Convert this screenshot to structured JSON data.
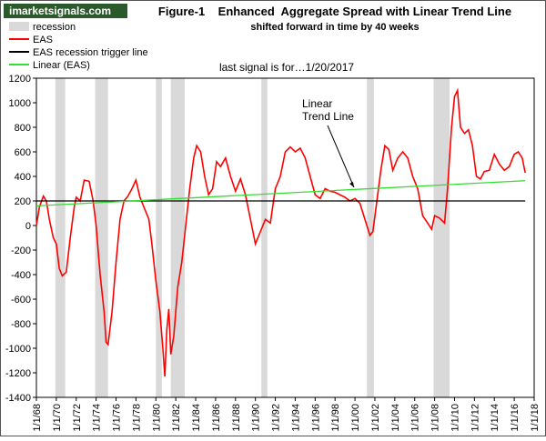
{
  "chart_data": {
    "type": "line",
    "logo": "imarketsignals.com",
    "title": "Figure-1    Enhanced  Aggregate Spread with Linear Trend Line",
    "subtitle": "shifted forward in time by 40 weeks",
    "annotations": [
      "last signal is for…1/20/2017",
      "Linear",
      "Trend Line"
    ],
    "xlim": [
      1968,
      2018
    ],
    "xticks": [
      {
        "value": 1968,
        "label": "1/1/68"
      },
      {
        "value": 1970,
        "label": "1/1/70"
      },
      {
        "value": 1972,
        "label": "1/1/72"
      },
      {
        "value": 1974,
        "label": "1/1/74"
      },
      {
        "value": 1976,
        "label": "1/1/76"
      },
      {
        "value": 1978,
        "label": "1/1/78"
      },
      {
        "value": 1980,
        "label": "1/1/80"
      },
      {
        "value": 1982,
        "label": "1/1/82"
      },
      {
        "value": 1984,
        "label": "1/1/84"
      },
      {
        "value": 1986,
        "label": "1/1/86"
      },
      {
        "value": 1988,
        "label": "1/1/88"
      },
      {
        "value": 1990,
        "label": "1/1/90"
      },
      {
        "value": 1992,
        "label": "1/1/92"
      },
      {
        "value": 1994,
        "label": "1/1/94"
      },
      {
        "value": 1996,
        "label": "1/1/96"
      },
      {
        "value": 1998,
        "label": "1/1/98"
      },
      {
        "value": 2000,
        "label": "1/1/00"
      },
      {
        "value": 2002,
        "label": "1/1/02"
      },
      {
        "value": 2004,
        "label": "1/1/04"
      },
      {
        "value": 2006,
        "label": "1/1/06"
      },
      {
        "value": 2008,
        "label": "1/1/08"
      },
      {
        "value": 2010,
        "label": "1/1/10"
      },
      {
        "value": 2012,
        "label": "1/1/12"
      },
      {
        "value": 2014,
        "label": "1/1/14"
      },
      {
        "value": 2016,
        "label": "1/1/16"
      },
      {
        "value": 2018,
        "label": "1/1/18"
      }
    ],
    "ylim": [
      -1400,
      1200
    ],
    "yticks": [
      1200,
      1000,
      800,
      600,
      400,
      200,
      0,
      -200,
      -400,
      -600,
      -800,
      -1000,
      -1200,
      -1400
    ],
    "series": [
      {
        "name": "recession",
        "kind": "band",
        "color": "#d9d9d9",
        "bands": [
          [
            1969.9,
            1970.9
          ],
          [
            1973.9,
            1975.2
          ],
          [
            1980.0,
            1980.6
          ],
          [
            1981.5,
            1982.9
          ],
          [
            1990.6,
            1991.2
          ],
          [
            2001.2,
            2001.9
          ],
          [
            2007.9,
            2009.5
          ]
        ]
      },
      {
        "name": "EAS",
        "kind": "line",
        "color": "#ff0000",
        "x": [
          1968.0,
          1968.3,
          1968.7,
          1969.0,
          1969.3,
          1969.7,
          1970.0,
          1970.3,
          1970.6,
          1971.0,
          1971.4,
          1971.8,
          1972.0,
          1972.4,
          1972.8,
          1973.3,
          1973.7,
          1974.0,
          1974.4,
          1974.8,
          1975.0,
          1975.2,
          1975.6,
          1976.0,
          1976.4,
          1976.8,
          1977.2,
          1977.6,
          1978.0,
          1978.4,
          1978.8,
          1979.3,
          1979.6,
          1980.0,
          1980.4,
          1980.7,
          1980.9,
          1981.1,
          1981.3,
          1981.5,
          1981.8,
          1982.2,
          1982.6,
          1983.0,
          1983.4,
          1983.8,
          1984.1,
          1984.5,
          1984.9,
          1985.3,
          1985.7,
          1986.1,
          1986.5,
          1987.0,
          1987.5,
          1988.0,
          1988.5,
          1989.0,
          1989.5,
          1990.0,
          1990.5,
          1991.0,
          1991.5,
          1992.0,
          1992.5,
          1993.0,
          1993.5,
          1994.0,
          1994.5,
          1995.0,
          1995.5,
          1996.0,
          1996.5,
          1997.0,
          1997.5,
          1998.0,
          1998.5,
          1999.0,
          1999.5,
          2000.0,
          2000.5,
          2001.0,
          2001.5,
          2001.8,
          2002.2,
          2002.6,
          2003.0,
          2003.4,
          2003.8,
          2004.3,
          2004.8,
          2005.3,
          2005.8,
          2006.3,
          2006.8,
          2007.3,
          2007.7,
          2008.0,
          2008.5,
          2009.0,
          2009.3,
          2009.7,
          2010.0,
          2010.3,
          2010.6,
          2011.0,
          2011.4,
          2011.8,
          2012.2,
          2012.6,
          2013.0,
          2013.5,
          2014.0,
          2014.5,
          2015.0,
          2015.5,
          2016.0,
          2016.4,
          2016.8,
          2017.1
        ],
        "values": [
          0,
          150,
          240,
          200,
          50,
          -100,
          -150,
          -350,
          -410,
          -380,
          -100,
          150,
          230,
          200,
          370,
          360,
          200,
          0,
          -400,
          -700,
          -950,
          -970,
          -700,
          -300,
          50,
          200,
          240,
          300,
          370,
          230,
          150,
          50,
          -150,
          -450,
          -700,
          -1000,
          -1230,
          -850,
          -680,
          -1050,
          -900,
          -500,
          -300,
          0,
          300,
          550,
          650,
          600,
          400,
          250,
          300,
          520,
          480,
          550,
          400,
          280,
          380,
          250,
          50,
          -150,
          -50,
          50,
          20,
          300,
          400,
          600,
          640,
          600,
          630,
          550,
          400,
          250,
          220,
          300,
          280,
          270,
          250,
          230,
          200,
          220,
          180,
          50,
          -80,
          -50,
          200,
          450,
          650,
          620,
          450,
          550,
          600,
          550,
          400,
          300,
          80,
          20,
          -30,
          80,
          60,
          20,
          300,
          800,
          1050,
          1100,
          800,
          750,
          780,
          650,
          400,
          380,
          440,
          450,
          580,
          500,
          450,
          480,
          580,
          600,
          550,
          430
        ]
      },
      {
        "name": "EAS recession trigger line",
        "kind": "line",
        "color": "#000000",
        "x": [
          1968.0,
          2017.1
        ],
        "values": [
          200,
          200
        ]
      },
      {
        "name": "Linear (EAS)",
        "kind": "line",
        "color": "#33dd33",
        "x": [
          1968.0,
          2017.1
        ],
        "values": [
          160,
          365
        ]
      }
    ]
  }
}
